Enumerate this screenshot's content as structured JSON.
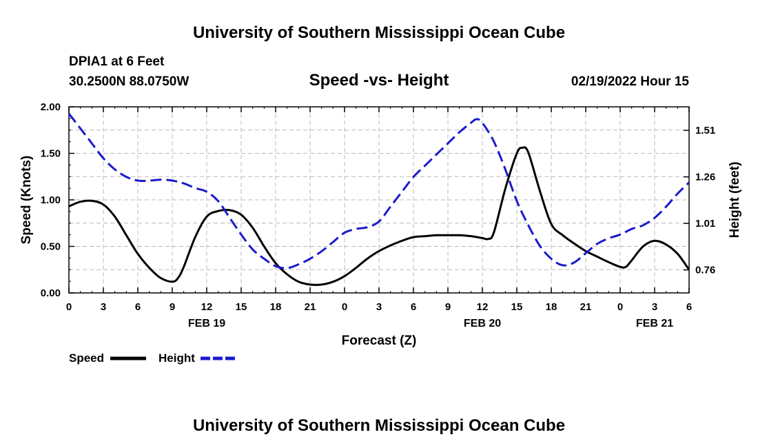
{
  "chart_data": {
    "type": "line",
    "title": "University of Southern Mississippi Ocean Cube",
    "footer_title": "University of Southern Mississippi Ocean Cube",
    "station": "DPIA1 at 6 Feet",
    "location": "30.2500N  88.0750W",
    "subtitle": "Speed -vs- Height",
    "timestamp": "02/19/2022 Hour 15",
    "xlabel": "Forecast (Z)",
    "ylabel_left": "Speed (Knots)",
    "ylabel_right": "Height (feet)",
    "xlim": [
      0,
      54
    ],
    "ylim_left": [
      0,
      2.0
    ],
    "ylim_right": [
      0.6364,
      1.6364
    ],
    "x_ticks": [
      0,
      3,
      6,
      9,
      12,
      15,
      18,
      21,
      24,
      27,
      30,
      33,
      36,
      39,
      42,
      45,
      48,
      51,
      54
    ],
    "x_tick_labels": [
      "0",
      "3",
      "6",
      "9",
      "12",
      "15",
      "18",
      "21",
      "0",
      "3",
      "6",
      "9",
      "12",
      "15",
      "18",
      "21",
      "0",
      "3",
      "6"
    ],
    "date_labels": [
      {
        "x": 12,
        "label": "FEB 19"
      },
      {
        "x": 36,
        "label": "FEB 20"
      },
      {
        "x": 51,
        "label": "FEB 21"
      }
    ],
    "y_ticks_left": [
      0.0,
      0.5,
      1.0,
      1.5,
      2.0
    ],
    "y_tick_labels_left": [
      "0.00",
      "0.50",
      "1.00",
      "1.50",
      "2.00"
    ],
    "y_ticks_right": [
      0.76,
      1.01,
      1.26,
      1.51
    ],
    "y_tick_labels_right": [
      "0.76",
      "1.01",
      "1.26",
      "1.51"
    ],
    "grid": true,
    "series": [
      {
        "name": "Speed",
        "axis": "left",
        "color": "#000000",
        "dashed": false,
        "x": [
          0,
          1,
          2,
          3,
          4,
          5,
          6,
          7,
          8,
          9,
          9.5,
          10,
          11,
          12,
          13,
          14,
          15,
          16,
          17,
          18,
          19,
          20,
          21,
          22,
          23,
          24,
          25,
          26,
          27,
          28,
          29,
          30,
          31,
          32,
          33,
          34,
          35,
          36,
          36.5,
          37,
          38,
          39,
          39.5,
          40,
          41,
          42,
          43,
          44,
          45,
          46,
          47,
          48,
          48.5,
          49,
          50,
          51,
          52,
          53,
          54
        ],
        "values": [
          0.93,
          0.98,
          0.99,
          0.95,
          0.82,
          0.62,
          0.42,
          0.27,
          0.16,
          0.12,
          0.16,
          0.28,
          0.6,
          0.82,
          0.88,
          0.89,
          0.84,
          0.7,
          0.5,
          0.32,
          0.2,
          0.12,
          0.09,
          0.09,
          0.12,
          0.18,
          0.27,
          0.37,
          0.45,
          0.51,
          0.56,
          0.6,
          0.61,
          0.62,
          0.62,
          0.62,
          0.61,
          0.59,
          0.58,
          0.65,
          1.12,
          1.5,
          1.56,
          1.51,
          1.1,
          0.74,
          0.62,
          0.53,
          0.45,
          0.39,
          0.33,
          0.28,
          0.28,
          0.35,
          0.5,
          0.56,
          0.52,
          0.42,
          0.25
        ]
      },
      {
        "name": "Height",
        "axis": "right",
        "color": "#1a1acc",
        "dashed": true,
        "x": [
          0,
          1,
          2,
          3,
          4,
          5,
          6,
          7,
          8,
          9,
          10,
          11,
          12,
          13,
          14,
          15,
          16,
          17,
          18,
          19,
          20,
          21,
          22,
          23,
          24,
          25,
          26,
          27,
          28,
          29,
          30,
          31,
          32,
          33,
          34,
          35,
          35.5,
          36,
          37,
          38,
          39,
          40,
          41,
          42,
          43,
          44,
          45,
          46,
          47,
          48,
          49,
          50,
          51,
          52,
          53,
          54
        ],
        "values": [
          1.6,
          1.52,
          1.44,
          1.36,
          1.3,
          1.26,
          1.24,
          1.24,
          1.245,
          1.24,
          1.225,
          1.2,
          1.18,
          1.13,
          1.04,
          0.95,
          0.87,
          0.82,
          0.78,
          0.77,
          0.79,
          0.82,
          0.86,
          0.91,
          0.96,
          0.98,
          0.99,
          1.02,
          1.1,
          1.18,
          1.26,
          1.32,
          1.38,
          1.44,
          1.5,
          1.55,
          1.57,
          1.55,
          1.45,
          1.3,
          1.13,
          1.0,
          0.89,
          0.82,
          0.785,
          0.8,
          0.85,
          0.9,
          0.93,
          0.95,
          0.98,
          1.0,
          1.04,
          1.1,
          1.17,
          1.23
        ]
      }
    ],
    "legend": [
      {
        "label": "Speed",
        "color": "#000000",
        "dashed": false
      },
      {
        "label": "Height",
        "color": "#1a1acc",
        "dashed": true
      }
    ]
  }
}
